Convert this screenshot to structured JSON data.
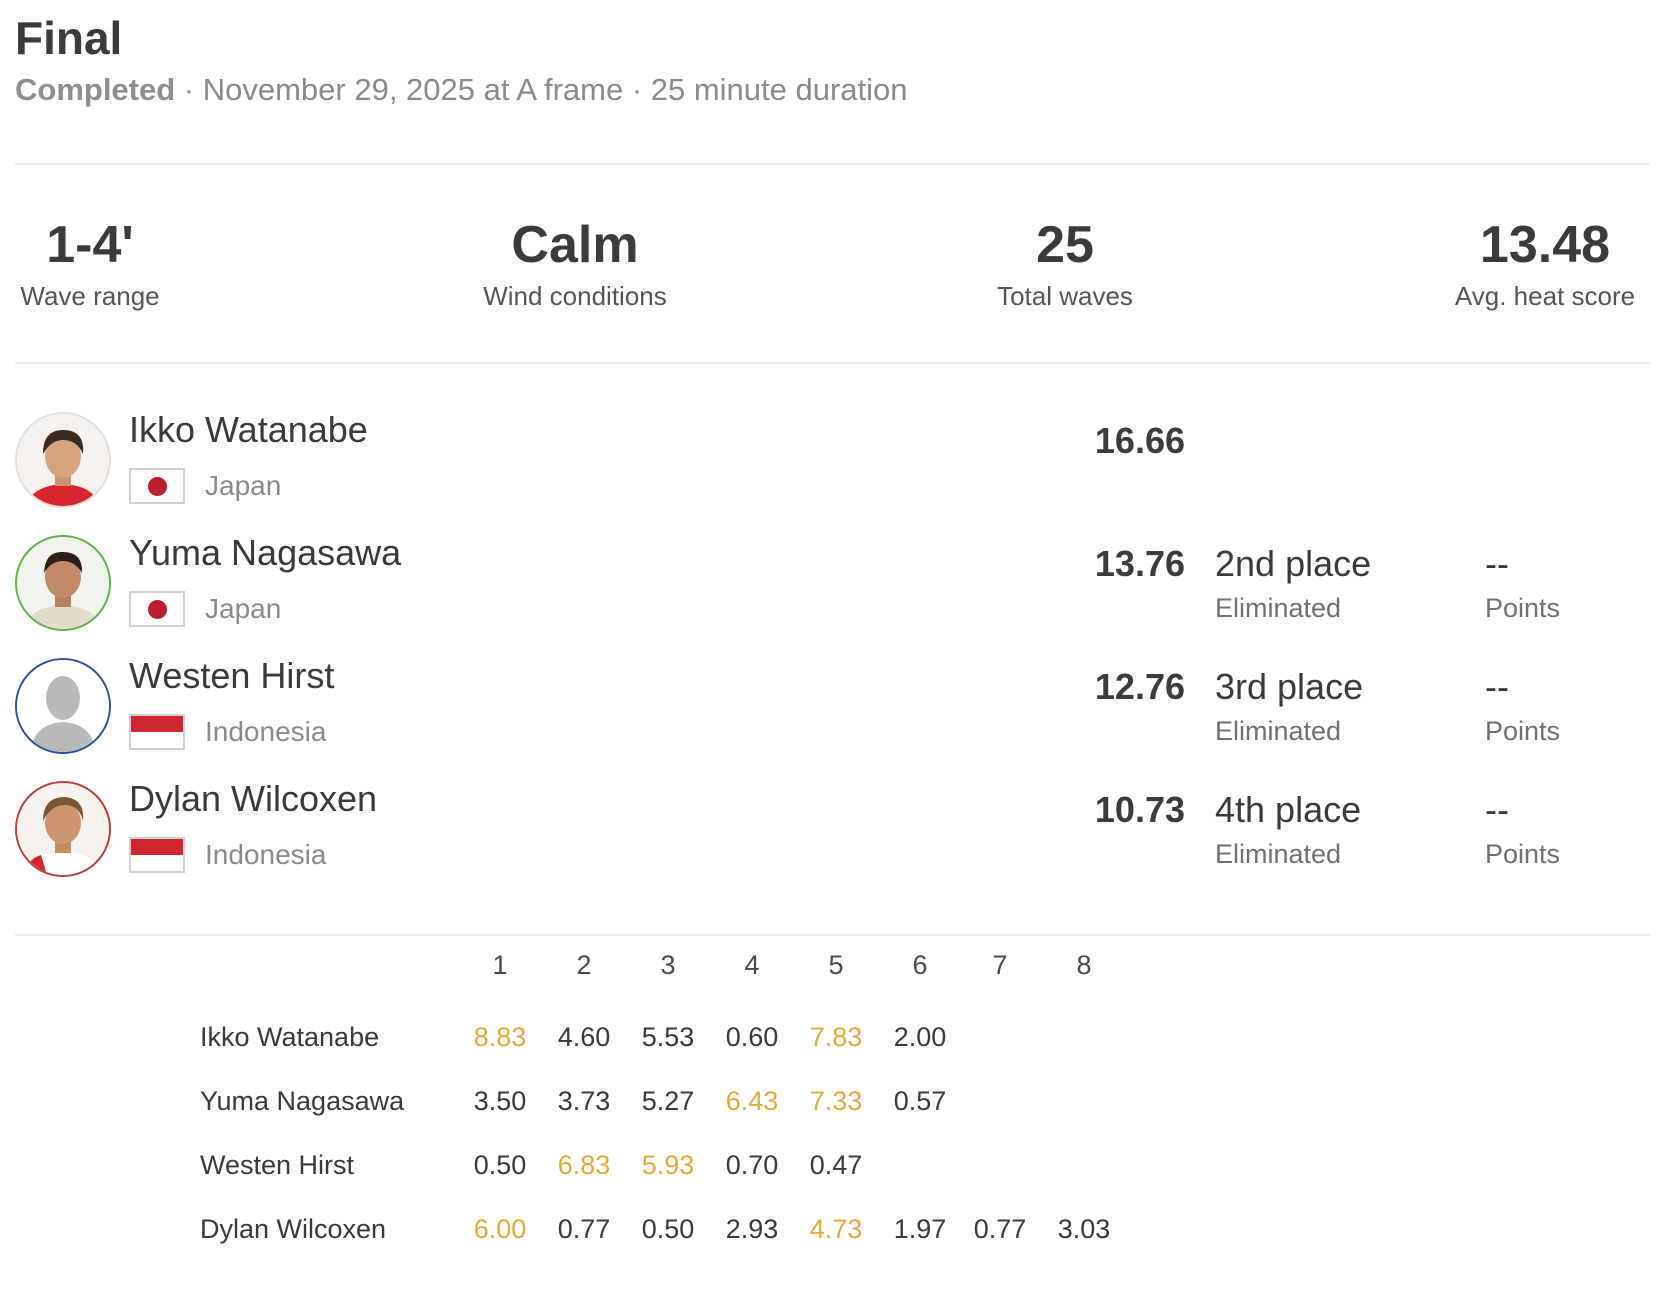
{
  "heat": {
    "title": "Final",
    "status": "Completed",
    "details": " · November 29, 2025 at A frame · 25 minute duration"
  },
  "stats": [
    {
      "value": "1-4'",
      "label": "Wave range"
    },
    {
      "value": "Calm",
      "label": "Wind conditions"
    },
    {
      "value": "25",
      "label": "Total waves"
    },
    {
      "value": "13.48",
      "label": "Avg. heat score"
    }
  ],
  "athletes": [
    {
      "name": "Ikko Watanabe",
      "country": "Japan",
      "score": "16.66",
      "place": "",
      "place_status": "",
      "points": "",
      "points_label": ""
    },
    {
      "name": "Yuma Nagasawa",
      "country": "Japan",
      "score": "13.76",
      "place": "2nd place",
      "place_status": "Eliminated",
      "points": "--",
      "points_label": "Points"
    },
    {
      "name": "Westen Hirst",
      "country": "Indonesia",
      "score": "12.76",
      "place": "3rd place",
      "place_status": "Eliminated",
      "points": "--",
      "points_label": "Points"
    },
    {
      "name": "Dylan Wilcoxen",
      "country": "Indonesia",
      "score": "10.73",
      "place": "4th place",
      "place_status": "Eliminated",
      "points": "--",
      "points_label": "Points"
    }
  ],
  "wave_table": {
    "headers": [
      "1",
      "2",
      "3",
      "4",
      "5",
      "6",
      "7",
      "8"
    ],
    "best_wave_color": "#e7a83a",
    "rows": [
      {
        "name": "Ikko Watanabe",
        "waves": [
          "8.83",
          "4.60",
          "5.53",
          "0.60",
          "7.83",
          "2.00"
        ],
        "best": [
          0,
          4
        ]
      },
      {
        "name": "Yuma Nagasawa",
        "waves": [
          "3.50",
          "3.73",
          "5.27",
          "6.43",
          "7.33",
          "0.57"
        ],
        "best": [
          3,
          4
        ]
      },
      {
        "name": "Westen Hirst",
        "waves": [
          "0.50",
          "6.83",
          "5.93",
          "0.70",
          "0.47"
        ],
        "best": [
          1,
          2
        ]
      },
      {
        "name": "Dylan Wilcoxen",
        "waves": [
          "6.00",
          "0.77",
          "0.50",
          "2.93",
          "4.73",
          "1.97",
          "0.77",
          "3.03"
        ],
        "best": [
          0,
          4
        ]
      }
    ]
  }
}
